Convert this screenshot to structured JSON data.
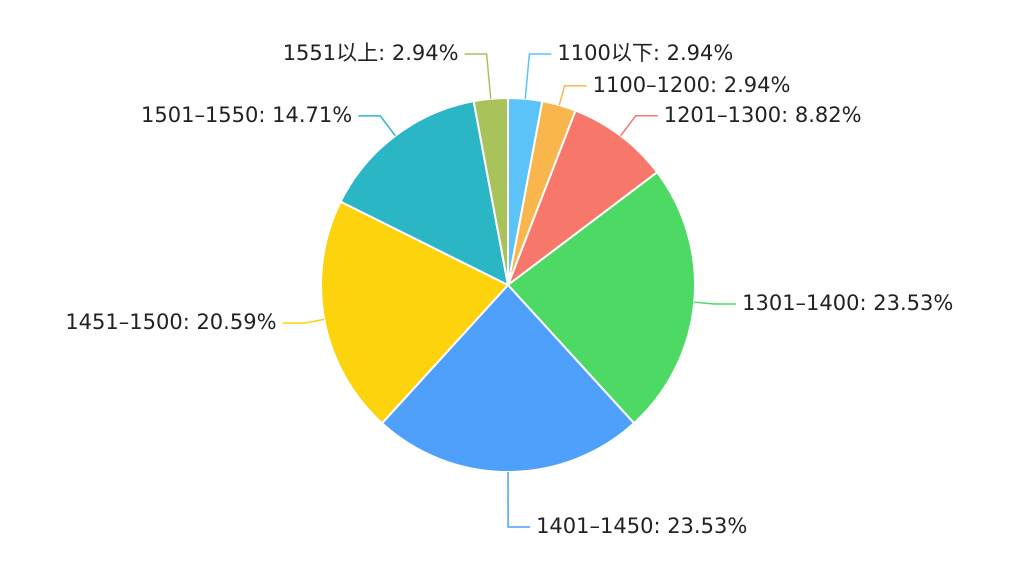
{
  "chart_data": {
    "type": "pie",
    "labels": [
      "1100以下: 2.94%",
      "1100–1200: 2.94%",
      "1201–1300: 8.82%",
      "1301–1400: 23.53%",
      "1401–1450: 23.53%",
      "1451–1500: 20.59%",
      "1501–1550: 14.71%",
      "1551以上: 2.94%"
    ],
    "values": [
      2.94,
      2.94,
      8.82,
      23.53,
      23.53,
      20.59,
      14.71,
      2.94
    ],
    "colors": [
      "#5bc3f7",
      "#f9b64d",
      "#f8776b",
      "#4cd964",
      "#4fa0fa",
      "#fdd30d",
      "#2bb6c5",
      "#a9c25a"
    ]
  }
}
